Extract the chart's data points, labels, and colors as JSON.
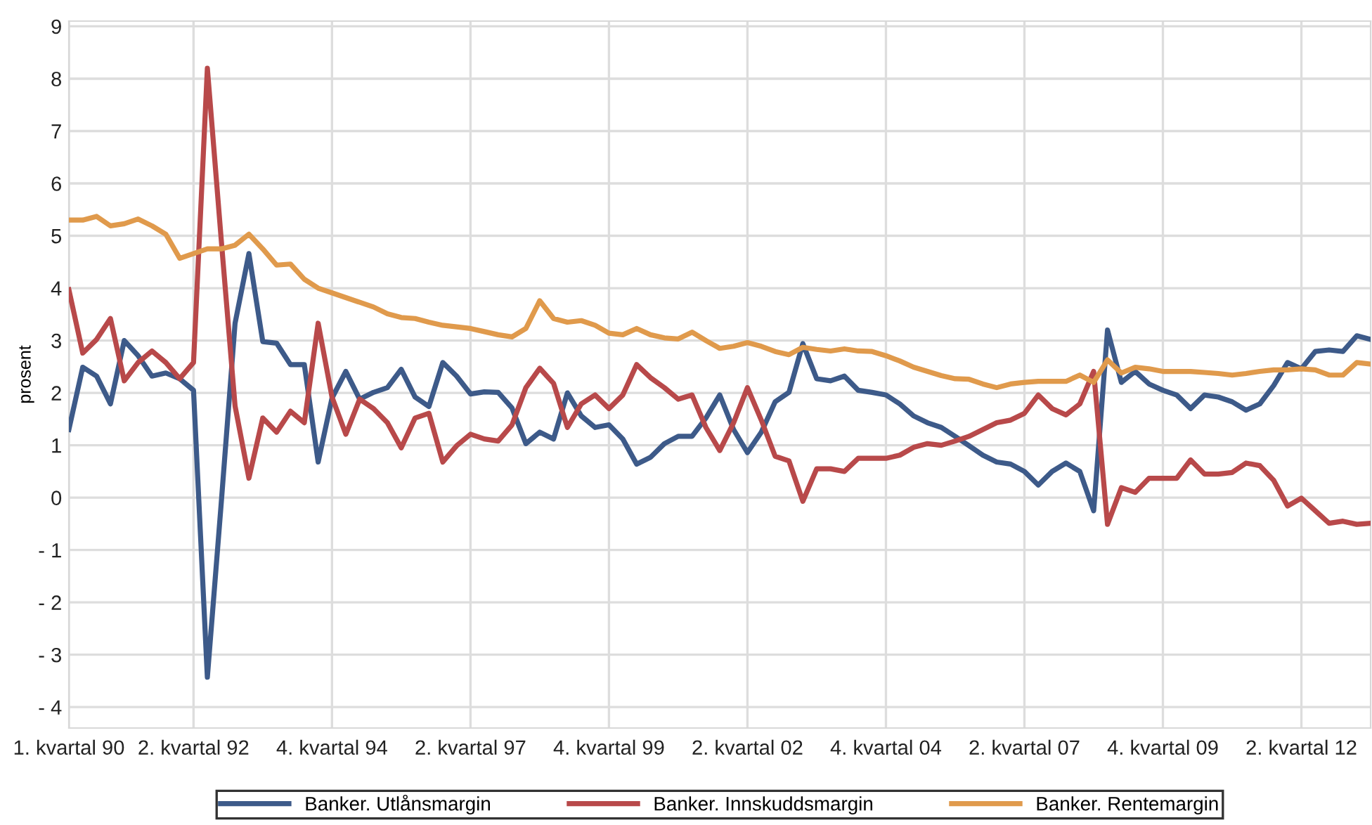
{
  "chart_data": {
    "type": "line",
    "ylabel": "prosent",
    "categories": [
      "1. kvartal 90",
      null,
      null,
      null,
      null,
      null,
      null,
      null,
      null,
      "2. kvartal 92",
      null,
      null,
      null,
      null,
      null,
      null,
      null,
      null,
      null,
      "4. kvartal 94",
      null,
      null,
      null,
      null,
      null,
      null,
      null,
      null,
      null,
      "2. kvartal 97",
      null,
      null,
      null,
      null,
      null,
      null,
      null,
      null,
      null,
      "4. kvartal 99",
      null,
      null,
      null,
      null,
      null,
      null,
      null,
      null,
      null,
      "2. kvartal 02",
      null,
      null,
      null,
      null,
      null,
      null,
      null,
      null,
      null,
      "4. kvartal 04",
      null,
      null,
      null,
      null,
      null,
      null,
      null,
      null,
      null,
      "2. kvartal 07",
      null,
      null,
      null,
      null,
      null,
      null,
      null,
      null,
      null,
      "4. kvartal 09",
      null,
      null,
      null,
      null,
      null,
      null,
      null,
      null,
      null,
      "2. kvartal 12",
      null,
      null,
      null,
      null,
      null
    ],
    "series": [
      {
        "name": "Banker. Utlånsmargin",
        "color": "#3d5a89",
        "values": [
          1.3,
          2.49,
          2.32,
          1.79,
          3.0,
          2.71,
          2.32,
          2.38,
          2.27,
          2.05,
          -3.43,
          -0.11,
          3.33,
          4.66,
          2.98,
          2.95,
          2.54,
          2.54,
          0.68,
          1.9,
          2.41,
          1.88,
          2.01,
          2.1,
          2.45,
          1.92,
          1.74,
          2.58,
          2.32,
          1.98,
          2.02,
          2.01,
          1.71,
          1.03,
          1.25,
          1.12,
          2.0,
          1.56,
          1.34,
          1.39,
          1.12,
          0.64,
          0.77,
          1.03,
          1.17,
          1.17,
          1.52,
          1.96,
          1.3,
          0.86,
          1.25,
          1.83,
          2.01,
          2.94,
          2.27,
          2.23,
          2.32,
          2.05,
          2.01,
          1.96,
          1.79,
          1.56,
          1.43,
          1.34,
          1.17,
          0.99,
          0.81,
          0.68,
          0.64,
          0.5,
          0.24,
          0.5,
          0.66,
          0.5,
          -0.25,
          3.2,
          2.2,
          2.41,
          2.17,
          2.05,
          1.96,
          1.7,
          1.96,
          1.92,
          1.83,
          1.67,
          1.79,
          2.14,
          2.58,
          2.46,
          2.79,
          2.82,
          2.79,
          3.09,
          3.02
        ]
      },
      {
        "name": "Banker. Innskuddsmargin",
        "color": "#b8494a",
        "values": [
          3.97,
          2.76,
          3.02,
          3.42,
          2.23,
          2.58,
          2.8,
          2.58,
          2.27,
          2.58,
          8.2,
          4.93,
          1.75,
          0.37,
          1.52,
          1.25,
          1.65,
          1.43,
          3.33,
          1.92,
          1.21,
          1.88,
          1.7,
          1.43,
          0.95,
          1.52,
          1.61,
          0.68,
          0.99,
          1.21,
          1.12,
          1.08,
          1.39,
          2.1,
          2.47,
          2.18,
          1.34,
          1.79,
          1.96,
          1.7,
          1.96,
          2.54,
          2.29,
          2.1,
          1.88,
          1.96,
          1.34,
          0.9,
          1.43,
          2.1,
          1.48,
          0.79,
          0.7,
          -0.07,
          0.55,
          0.55,
          0.5,
          0.75,
          0.75,
          0.75,
          0.81,
          0.96,
          1.03,
          1.0,
          1.08,
          1.17,
          1.3,
          1.43,
          1.48,
          1.61,
          1.96,
          1.7,
          1.58,
          1.79,
          2.41,
          -0.51,
          0.19,
          0.1,
          0.37,
          0.37,
          0.37,
          0.72,
          0.45,
          0.45,
          0.48,
          0.66,
          0.61,
          0.33,
          -0.16,
          -0.01,
          -0.25,
          -0.49,
          -0.45,
          -0.51,
          -0.49
        ]
      },
      {
        "name": "Banker. Rentemargin",
        "color": "#e09a4c",
        "values": [
          5.3,
          5.3,
          5.37,
          5.19,
          5.23,
          5.32,
          5.19,
          5.03,
          4.57,
          4.66,
          4.75,
          4.75,
          4.82,
          5.03,
          4.75,
          4.44,
          4.46,
          4.17,
          4.0,
          3.91,
          3.82,
          3.73,
          3.64,
          3.51,
          3.44,
          3.42,
          3.35,
          3.29,
          3.26,
          3.23,
          3.17,
          3.11,
          3.07,
          3.23,
          3.76,
          3.42,
          3.35,
          3.38,
          3.29,
          3.14,
          3.11,
          3.23,
          3.11,
          3.05,
          3.03,
          3.16,
          3.0,
          2.85,
          2.89,
          2.96,
          2.89,
          2.79,
          2.73,
          2.87,
          2.83,
          2.8,
          2.84,
          2.8,
          2.79,
          2.71,
          2.61,
          2.49,
          2.41,
          2.33,
          2.27,
          2.26,
          2.17,
          2.1,
          2.17,
          2.2,
          2.22,
          2.22,
          2.22,
          2.34,
          2.2,
          2.63,
          2.38,
          2.49,
          2.46,
          2.41,
          2.41,
          2.41,
          2.39,
          2.37,
          2.34,
          2.37,
          2.41,
          2.44,
          2.44,
          2.46,
          2.44,
          2.34,
          2.34,
          2.58,
          2.55
        ]
      }
    ],
    "ylim": [
      -4.4,
      9.1
    ],
    "yticks": [
      {
        "value": -4,
        "label": "- 4"
      },
      {
        "value": -3,
        "label": "- 3"
      },
      {
        "value": -2,
        "label": "- 2"
      },
      {
        "value": -1,
        "label": "- 1"
      },
      0,
      1,
      2,
      3,
      4,
      5,
      6,
      7,
      8,
      9
    ],
    "grid": true,
    "legend": "bottom",
    "marker": "none",
    "line_style": "solid"
  }
}
